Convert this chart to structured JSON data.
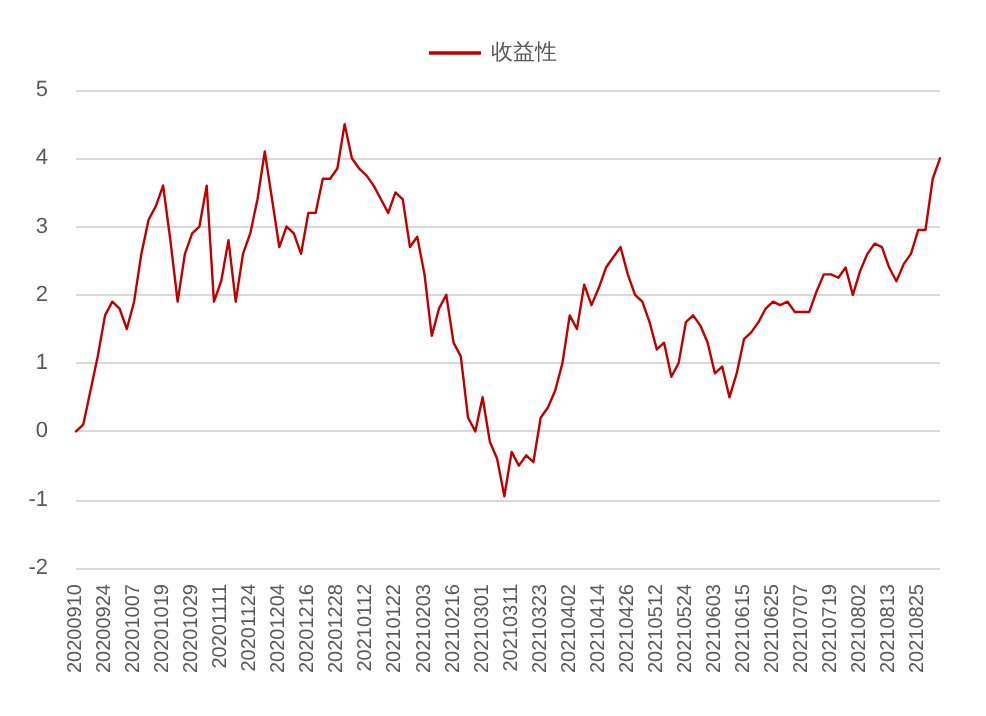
{
  "chart_data": {
    "type": "line",
    "legend": "top",
    "grid": "y",
    "marker": "none",
    "line_style": "solid",
    "ylim": [
      -2,
      5
    ],
    "yticks": [
      -2,
      -1,
      0,
      1,
      2,
      3,
      4,
      5
    ],
    "categories": [
      "20200910",
      null,
      null,
      null,
      "20200924",
      null,
      null,
      null,
      "20201007",
      null,
      null,
      null,
      "20201019",
      null,
      null,
      null,
      "20201029",
      null,
      null,
      null,
      "20201111",
      null,
      null,
      null,
      "20201124",
      null,
      null,
      null,
      "20201204",
      null,
      null,
      null,
      "20201216",
      null,
      null,
      null,
      "20201228",
      null,
      null,
      null,
      "20210112",
      null,
      null,
      null,
      "20210122",
      null,
      null,
      null,
      "20210203",
      null,
      null,
      null,
      "20210216",
      null,
      null,
      null,
      "20210301",
      null,
      null,
      null,
      "20210311",
      null,
      null,
      null,
      "20210323",
      null,
      null,
      null,
      "20210402",
      null,
      null,
      null,
      "20210414",
      null,
      null,
      null,
      "20210426",
      null,
      null,
      null,
      "20210512",
      null,
      null,
      null,
      "20210524",
      null,
      null,
      null,
      "20210603",
      null,
      null,
      null,
      "20210615",
      null,
      null,
      null,
      "20210625",
      null,
      null,
      null,
      "20210707",
      null,
      null,
      null,
      "20210719",
      null,
      null,
      null,
      "20210802",
      null,
      null,
      null,
      "20210813",
      null,
      null,
      null,
      "20210825",
      null,
      null,
      null
    ],
    "series": [
      {
        "name": "收益性",
        "color": "#c00000",
        "values": [
          0,
          0.1,
          0.6,
          1.1,
          1.7,
          1.9,
          1.8,
          1.5,
          1.9,
          2.6,
          3.1,
          3.3,
          3.6,
          2.8,
          1.9,
          2.6,
          2.9,
          3.0,
          3.6,
          1.9,
          2.2,
          2.8,
          1.9,
          2.6,
          2.9,
          3.4,
          4.1,
          3.4,
          2.7,
          3.0,
          2.9,
          2.6,
          3.2,
          3.2,
          3.7,
          3.7,
          3.85,
          4.5,
          4.0,
          3.85,
          3.75,
          3.6,
          3.4,
          3.2,
          3.5,
          3.4,
          2.7,
          2.85,
          2.3,
          1.4,
          1.8,
          2.0,
          1.3,
          1.1,
          0.2,
          0,
          0.5,
          -0.15,
          -0.4,
          -0.95,
          -0.3,
          -0.5,
          -0.35,
          -0.45,
          0.2,
          0.35,
          0.6,
          1.0,
          1.7,
          1.5,
          2.15,
          1.85,
          2.1,
          2.4,
          2.55,
          2.7,
          2.3,
          2.0,
          1.9,
          1.6,
          1.2,
          1.3,
          0.8,
          1.0,
          1.6,
          1.7,
          1.55,
          1.3,
          0.85,
          0.95,
          0.5,
          0.85,
          1.35,
          1.45,
          1.6,
          1.8,
          1.9,
          1.85,
          1.9,
          1.75,
          1.75,
          1.75,
          2.05,
          2.3,
          2.3,
          2.25,
          2.4,
          2.0,
          2.35,
          2.6,
          2.75,
          2.7,
          2.4,
          2.2,
          2.45,
          2.6,
          2.95,
          2.95,
          3.7,
          4.0
        ]
      }
    ]
  }
}
